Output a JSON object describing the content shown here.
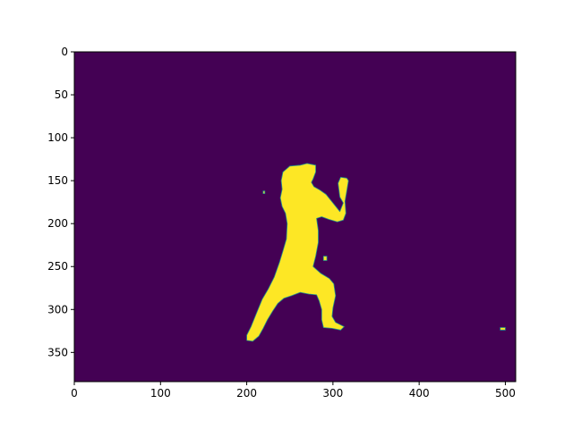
{
  "chart_data": {
    "type": "heatmap",
    "title": "",
    "xlabel": "",
    "ylabel": "",
    "image_width": 512,
    "image_height": 384,
    "xlim": [
      0,
      512
    ],
    "ylim": [
      384,
      0
    ],
    "grid": false,
    "legend": "none",
    "colormap": "viridis",
    "colors": {
      "background": "#440154",
      "mask": "#fde725",
      "edge": "#21918c"
    },
    "xticks": [
      {
        "value": 0,
        "label": "0"
      },
      {
        "value": 100,
        "label": "100"
      },
      {
        "value": 200,
        "label": "200"
      },
      {
        "value": 300,
        "label": "300"
      },
      {
        "value": 400,
        "label": "400"
      },
      {
        "value": 500,
        "label": "500"
      }
    ],
    "yticks": [
      {
        "value": 0,
        "label": "0"
      },
      {
        "value": 50,
        "label": "50"
      },
      {
        "value": 100,
        "label": "100"
      },
      {
        "value": 150,
        "label": "150"
      },
      {
        "value": 200,
        "label": "200"
      },
      {
        "value": 250,
        "label": "250"
      },
      {
        "value": 300,
        "label": "300"
      },
      {
        "value": 350,
        "label": "350"
      }
    ],
    "regions": [
      {
        "name": "figure",
        "value": 1,
        "points": [
          [
            242,
            140
          ],
          [
            250,
            133
          ],
          [
            262,
            132
          ],
          [
            270,
            130
          ],
          [
            280,
            132
          ],
          [
            280,
            140
          ],
          [
            277,
            148
          ],
          [
            275,
            152
          ],
          [
            278,
            157
          ],
          [
            285,
            161
          ],
          [
            292,
            166
          ],
          [
            300,
            176
          ],
          [
            308,
            186
          ],
          [
            312,
            176
          ],
          [
            308,
            169
          ],
          [
            306,
            153
          ],
          [
            309,
            146
          ],
          [
            316,
            147
          ],
          [
            318,
            150
          ],
          [
            316,
            162
          ],
          [
            314,
            174
          ],
          [
            315,
            188
          ],
          [
            312,
            196
          ],
          [
            305,
            198
          ],
          [
            295,
            195
          ],
          [
            287,
            192
          ],
          [
            281,
            194
          ],
          [
            283,
            208
          ],
          [
            283,
            222
          ],
          [
            280,
            238
          ],
          [
            277,
            250
          ],
          [
            286,
            258
          ],
          [
            296,
            264
          ],
          [
            301,
            270
          ],
          [
            303,
            284
          ],
          [
            300,
            298
          ],
          [
            299,
            308
          ],
          [
            303,
            315
          ],
          [
            313,
            320
          ],
          [
            309,
            324
          ],
          [
            299,
            322
          ],
          [
            289,
            321
          ],
          [
            287,
            312
          ],
          [
            287,
            300
          ],
          [
            284,
            290
          ],
          [
            281,
            283
          ],
          [
            272,
            282
          ],
          [
            262,
            280
          ],
          [
            252,
            284
          ],
          [
            243,
            287
          ],
          [
            236,
            293
          ],
          [
            230,
            302
          ],
          [
            224,
            312
          ],
          [
            219,
            322
          ],
          [
            214,
            331
          ],
          [
            207,
            337
          ],
          [
            200,
            336
          ],
          [
            200,
            330
          ],
          [
            205,
            320
          ],
          [
            211,
            305
          ],
          [
            218,
            288
          ],
          [
            225,
            276
          ],
          [
            232,
            262
          ],
          [
            238,
            245
          ],
          [
            242,
            232
          ],
          [
            246,
            218
          ],
          [
            247,
            200
          ],
          [
            245,
            188
          ],
          [
            241,
            180
          ],
          [
            239,
            170
          ],
          [
            241,
            160
          ],
          [
            240,
            150
          ]
        ]
      },
      {
        "name": "speck-left",
        "value": 1,
        "points": [
          [
            219,
            162
          ],
          [
            221,
            162
          ],
          [
            221,
            165
          ],
          [
            219,
            165
          ]
        ]
      },
      {
        "name": "speck-right",
        "value": 1,
        "points": [
          [
            494,
            321
          ],
          [
            500,
            321
          ],
          [
            500,
            324
          ],
          [
            494,
            324
          ]
        ]
      },
      {
        "name": "speck-mid",
        "value": 1,
        "points": [
          [
            289,
            238
          ],
          [
            293,
            238
          ],
          [
            293,
            243
          ],
          [
            289,
            243
          ]
        ]
      }
    ]
  }
}
